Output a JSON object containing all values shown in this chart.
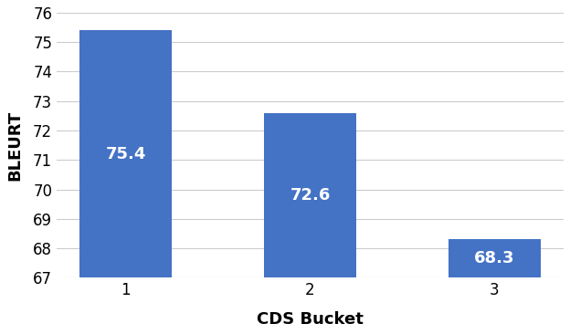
{
  "categories": [
    "1",
    "2",
    "3"
  ],
  "values": [
    75.4,
    72.6,
    68.3
  ],
  "bar_color": "#4472C4",
  "label_color": "#FFFFFF",
  "ylabel": "BLEURT",
  "xlabel": "CDS Bucket",
  "ylim": [
    67,
    76
  ],
  "yticks": [
    67,
    68,
    69,
    70,
    71,
    72,
    73,
    74,
    75,
    76
  ],
  "bar_width": 0.5,
  "label_fontsize": 13,
  "axis_label_fontsize": 13,
  "tick_fontsize": 12,
  "grid_color": "#CCCCCC",
  "background_color": "#FFFFFF",
  "bar_annotations": [
    "75.4",
    "72.6",
    "68.3"
  ]
}
